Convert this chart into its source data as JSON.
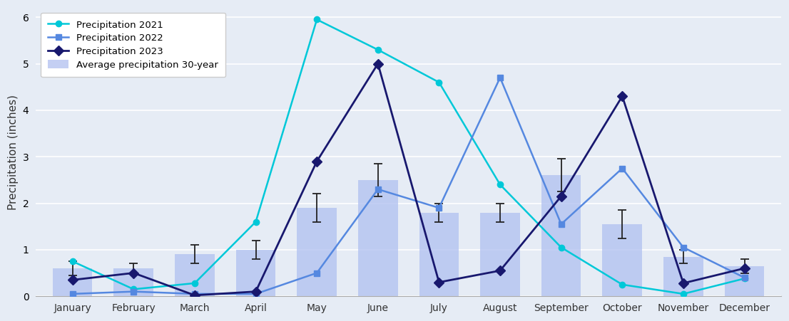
{
  "months": [
    "January",
    "February",
    "March",
    "April",
    "May",
    "June",
    "July",
    "August",
    "September",
    "October",
    "November",
    "December"
  ],
  "avg_30yr": [
    0.6,
    0.6,
    0.9,
    1.0,
    1.9,
    2.5,
    1.8,
    1.8,
    2.6,
    1.55,
    0.85,
    0.65
  ],
  "avg_30yr_err": [
    0.15,
    0.1,
    0.2,
    0.2,
    0.3,
    0.35,
    0.2,
    0.2,
    0.35,
    0.3,
    0.15,
    0.15
  ],
  "precip_2021": [
    0.75,
    0.15,
    0.28,
    1.6,
    5.95,
    5.3,
    4.6,
    2.4,
    1.05,
    0.25,
    0.05,
    0.38
  ],
  "precip_2022": [
    0.05,
    0.1,
    0.05,
    0.05,
    0.5,
    2.3,
    1.9,
    4.7,
    1.55,
    2.75,
    1.05,
    0.4
  ],
  "precip_2023": [
    0.35,
    0.5,
    0.02,
    0.1,
    2.9,
    5.0,
    0.3,
    0.55,
    2.15,
    4.3,
    0.28,
    0.6
  ],
  "bar_color": "#b0c0f0",
  "bar_edgecolor": "#9090cc",
  "color_2021": "#00c8d8",
  "color_2022": "#5588e0",
  "color_2023": "#18186e",
  "bg_color": "#e6ecf5",
  "ylabel": "Precipitation (inches)",
  "ylim": [
    0,
    6.2
  ],
  "yticks": [
    0,
    1,
    2,
    3,
    4,
    5,
    6
  ],
  "legend_avg": "Average precipitation 30-year",
  "legend_2021": "Precipitation 2021",
  "legend_2022": "Precipitation 2022",
  "legend_2023": "Precipitation 2023"
}
